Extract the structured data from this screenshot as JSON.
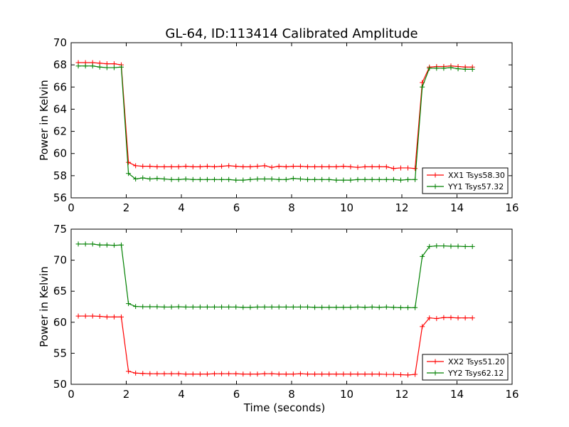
{
  "figure": {
    "title": "GL-64, ID:113414 Calibrated Amplitude",
    "background": "#ffffff"
  },
  "colors": {
    "red_series": "#ff0000",
    "green_series": "#008000"
  },
  "chart_data": [
    {
      "type": "line",
      "title": "GL-64, ID:113414 Calibrated Amplitude",
      "xlabel": "",
      "ylabel": "Power in Kelvin",
      "xlim": [
        0,
        16
      ],
      "ylim": [
        56,
        70
      ],
      "xticks": [
        0,
        2,
        4,
        6,
        8,
        10,
        12,
        14,
        16
      ],
      "yticks": [
        56,
        58,
        60,
        62,
        64,
        66,
        68,
        70
      ],
      "grid": false,
      "legend_position": "lower-right",
      "x": [
        0.26,
        0.52,
        0.78,
        1.04,
        1.3,
        1.56,
        1.82,
        2.08,
        2.34,
        2.6,
        2.86,
        3.12,
        3.38,
        3.64,
        3.9,
        4.16,
        4.42,
        4.68,
        4.94,
        5.2,
        5.46,
        5.72,
        5.98,
        6.24,
        6.5,
        6.76,
        7.02,
        7.28,
        7.54,
        7.8,
        8.06,
        8.32,
        8.58,
        8.84,
        9.1,
        9.36,
        9.62,
        9.88,
        10.14,
        10.4,
        10.66,
        10.92,
        11.18,
        11.44,
        11.7,
        11.96,
        12.22,
        12.48,
        12.74,
        13.0,
        13.26,
        13.52,
        13.78,
        14.04,
        14.3,
        14.56
      ],
      "series": [
        {
          "name": "XX1 Tsys58.30",
          "color": "#ff0000",
          "values": [
            68.2,
            68.2,
            68.2,
            68.15,
            68.1,
            68.1,
            68.0,
            59.2,
            58.9,
            58.85,
            58.85,
            58.8,
            58.8,
            58.8,
            58.8,
            58.85,
            58.8,
            58.8,
            58.85,
            58.8,
            58.85,
            58.9,
            58.85,
            58.8,
            58.8,
            58.85,
            58.9,
            58.75,
            58.85,
            58.8,
            58.85,
            58.85,
            58.8,
            58.8,
            58.8,
            58.8,
            58.8,
            58.85,
            58.8,
            58.75,
            58.8,
            58.8,
            58.8,
            58.8,
            58.65,
            58.7,
            58.7,
            58.65,
            66.4,
            67.8,
            67.85,
            67.85,
            67.9,
            67.85,
            67.8,
            67.8
          ]
        },
        {
          "name": "YY1 Tsys57.32",
          "color": "#008000",
          "values": [
            67.9,
            67.9,
            67.9,
            67.8,
            67.75,
            67.75,
            67.8,
            58.2,
            57.7,
            57.8,
            57.7,
            57.75,
            57.7,
            57.65,
            57.65,
            57.7,
            57.65,
            57.65,
            57.65,
            57.65,
            57.65,
            57.65,
            57.6,
            57.6,
            57.65,
            57.7,
            57.7,
            57.7,
            57.65,
            57.65,
            57.75,
            57.7,
            57.65,
            57.65,
            57.65,
            57.65,
            57.6,
            57.6,
            57.6,
            57.65,
            57.65,
            57.65,
            57.65,
            57.65,
            57.65,
            57.6,
            57.65,
            57.65,
            66.0,
            67.7,
            67.7,
            67.7,
            67.75,
            67.65,
            67.6,
            67.6
          ]
        }
      ]
    },
    {
      "type": "line",
      "title": "",
      "xlabel": "Time (seconds)",
      "ylabel": "Power in Kelvin",
      "xlim": [
        0,
        16
      ],
      "ylim": [
        50,
        75
      ],
      "xticks": [
        0,
        2,
        4,
        6,
        8,
        10,
        12,
        14,
        16
      ],
      "yticks": [
        50,
        55,
        60,
        65,
        70,
        75
      ],
      "grid": false,
      "legend_position": "lower-right",
      "x": [
        0.26,
        0.52,
        0.78,
        1.04,
        1.3,
        1.56,
        1.82,
        2.08,
        2.34,
        2.6,
        2.86,
        3.12,
        3.38,
        3.64,
        3.9,
        4.16,
        4.42,
        4.68,
        4.94,
        5.2,
        5.46,
        5.72,
        5.98,
        6.24,
        6.5,
        6.76,
        7.02,
        7.28,
        7.54,
        7.8,
        8.06,
        8.32,
        8.58,
        8.84,
        9.1,
        9.36,
        9.62,
        9.88,
        10.14,
        10.4,
        10.66,
        10.92,
        11.18,
        11.44,
        11.7,
        11.96,
        12.22,
        12.48,
        12.74,
        13.0,
        13.26,
        13.52,
        13.78,
        14.04,
        14.3,
        14.56
      ],
      "series": [
        {
          "name": "XX2 Tsys51.20",
          "color": "#ff0000",
          "values": [
            61.0,
            61.0,
            61.0,
            60.95,
            60.85,
            60.85,
            60.85,
            52.1,
            51.8,
            51.75,
            51.7,
            51.7,
            51.7,
            51.7,
            51.7,
            51.65,
            51.65,
            51.65,
            51.65,
            51.7,
            51.7,
            51.7,
            51.7,
            51.65,
            51.65,
            51.65,
            51.7,
            51.7,
            51.65,
            51.65,
            51.65,
            51.7,
            51.65,
            51.65,
            51.65,
            51.65,
            51.65,
            51.65,
            51.65,
            51.65,
            51.65,
            51.65,
            51.65,
            51.6,
            51.6,
            51.55,
            51.5,
            51.6,
            59.3,
            60.7,
            60.6,
            60.75,
            60.75,
            60.7,
            60.7,
            60.7
          ]
        },
        {
          "name": "YY2 Tsys62.12",
          "color": "#008000",
          "values": [
            72.6,
            72.6,
            72.6,
            72.45,
            72.45,
            72.4,
            72.45,
            63.0,
            62.55,
            62.5,
            62.5,
            62.5,
            62.45,
            62.45,
            62.5,
            62.45,
            62.45,
            62.45,
            62.45,
            62.45,
            62.45,
            62.45,
            62.45,
            62.4,
            62.4,
            62.45,
            62.45,
            62.45,
            62.45,
            62.45,
            62.45,
            62.45,
            62.45,
            62.4,
            62.4,
            62.4,
            62.4,
            62.4,
            62.4,
            62.45,
            62.4,
            62.45,
            62.4,
            62.45,
            62.4,
            62.35,
            62.35,
            62.35,
            70.6,
            72.2,
            72.3,
            72.3,
            72.25,
            72.25,
            72.2,
            72.2
          ]
        }
      ]
    }
  ]
}
